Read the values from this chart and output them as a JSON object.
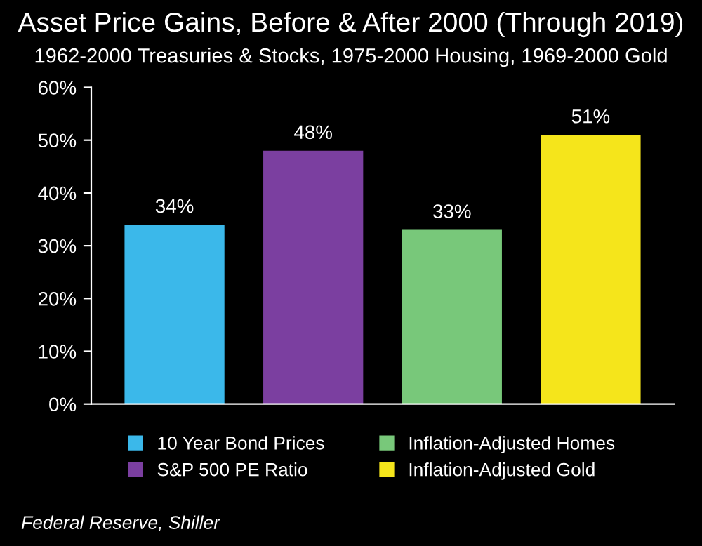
{
  "chart_data": {
    "type": "bar",
    "title": "Asset Price Gains, Before & After 2000 (Through 2019)",
    "subtitle": "1962-2000 Treasuries & Stocks, 1975-2000 Housing, 1969-2000 Gold",
    "categories": [
      null,
      null,
      null,
      null
    ],
    "series": [
      {
        "name": "10 Year Bond Prices",
        "color": "#3bb8ea",
        "values": [
          34,
          null,
          null,
          null
        ],
        "value_labels": [
          "34%",
          null,
          null,
          null
        ]
      },
      {
        "name": "S&P 500 PE Ratio",
        "color": "#7b3fa0",
        "values": [
          null,
          48,
          null,
          null
        ],
        "value_labels": [
          null,
          "48%",
          null,
          null
        ]
      },
      {
        "name": "Inflation-Adjusted Homes",
        "color": "#78c87a",
        "values": [
          null,
          null,
          33,
          null
        ],
        "value_labels": [
          null,
          null,
          "33%",
          null
        ]
      },
      {
        "name": "Inflation-Adjusted Gold",
        "color": "#f5e51b",
        "values": [
          null,
          null,
          null,
          51
        ],
        "value_labels": [
          null,
          null,
          null,
          "51%"
        ]
      }
    ],
    "ylim": [
      0,
      60
    ],
    "yticks": [
      {
        "value": 0,
        "label": "0%"
      },
      {
        "value": 10,
        "label": "10%"
      },
      {
        "value": 20,
        "label": "20%"
      },
      {
        "value": 30,
        "label": "30%"
      },
      {
        "value": 40,
        "label": "40%"
      },
      {
        "value": 50,
        "label": "50%"
      },
      {
        "value": 60,
        "label": "60%"
      }
    ],
    "legend": "bottom",
    "annotations": [
      "Federal Reserve, Shiller"
    ]
  }
}
